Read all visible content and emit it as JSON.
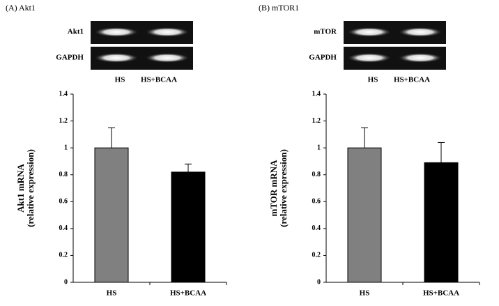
{
  "chart_data": [
    {
      "type": "bar",
      "title": "(A) Akt1",
      "gel": {
        "rows": [
          "Akt1",
          "GAPDH"
        ],
        "lanes": [
          "HS",
          "HS+BCAA"
        ]
      },
      "ylabel": [
        "Akt1 mRNA",
        "(relative expression)"
      ],
      "categories": [
        "HS",
        "HS+BCAA"
      ],
      "values": [
        1.0,
        0.82
      ],
      "errors": [
        0.15,
        0.06
      ],
      "colors": [
        "#808080",
        "#000000"
      ],
      "ylim": [
        0,
        1.4
      ],
      "yticks": [
        0,
        0.2,
        0.4,
        0.6,
        0.8,
        1,
        1.2,
        1.4
      ]
    },
    {
      "type": "bar",
      "title": "(B) mTOR1",
      "gel": {
        "rows": [
          "mTOR",
          "GAPDH"
        ],
        "lanes": [
          "HS",
          "HS+BCAA"
        ]
      },
      "ylabel": [
        "mTOR mRNA",
        "(relative expression)"
      ],
      "categories": [
        "HS",
        "HS+BCAA"
      ],
      "values": [
        1.0,
        0.89
      ],
      "errors": [
        0.15,
        0.15
      ],
      "colors": [
        "#808080",
        "#000000"
      ],
      "ylim": [
        0,
        1.4
      ],
      "yticks": [
        0,
        0.2,
        0.4,
        0.6,
        0.8,
        1,
        1.2,
        1.4
      ]
    }
  ]
}
